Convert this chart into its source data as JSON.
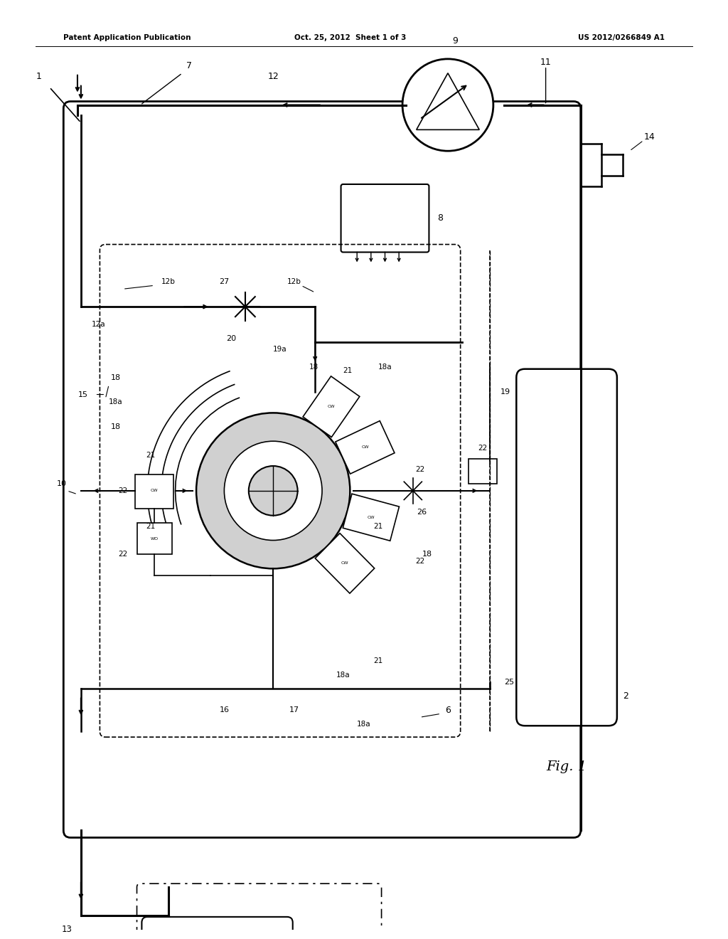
{
  "title_left": "Patent Application Publication",
  "title_center": "Oct. 25, 2012  Sheet 1 of 3",
  "title_right": "US 2012/0266849 A1",
  "fig_label": "Fig. 1",
  "bg_color": "#ffffff",
  "line_color": "#000000",
  "gray_fill": "#d0d0d0",
  "white": "#ffffff"
}
